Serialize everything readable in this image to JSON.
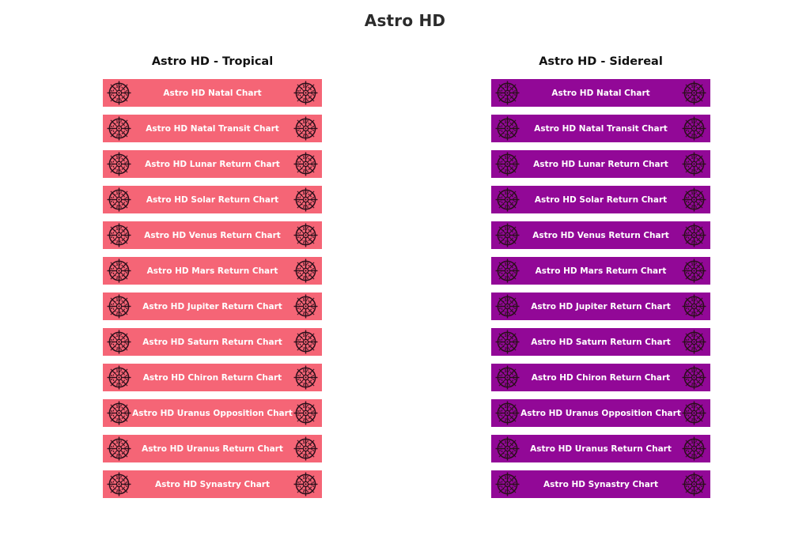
{
  "page": {
    "title": "Astro HD"
  },
  "colors": {
    "tropical": "#f56576",
    "sidereal": "#920897",
    "icon_stroke": "#2a0f1a"
  },
  "icons": {
    "left": "zodiac-wheel-icon",
    "right": "zodiac-wheel-icon"
  },
  "tropical": {
    "title": "Astro HD - Tropical",
    "buttons": [
      "Astro HD Natal Chart",
      "Astro HD Natal Transit Chart",
      "Astro HD Lunar Return Chart",
      "Astro HD Solar Return Chart",
      "Astro HD Venus Return Chart",
      "Astro HD Mars Return Chart",
      "Astro HD Jupiter Return Chart",
      "Astro HD Saturn Return Chart",
      "Astro HD Chiron Return Chart",
      "Astro HD Uranus Opposition Chart",
      "Astro HD Uranus Return Chart",
      "Astro HD Synastry Chart"
    ]
  },
  "sidereal": {
    "title": "Astro HD - Sidereal",
    "buttons": [
      "Astro HD Natal Chart",
      "Astro HD Natal Transit Chart",
      "Astro HD Lunar Return Chart",
      "Astro HD Solar Return Chart",
      "Astro HD Venus Return Chart",
      "Astro HD Mars Return Chart",
      "Astro HD Jupiter Return Chart",
      "Astro HD Saturn Return Chart",
      "Astro HD Chiron Return Chart",
      "Astro HD Uranus Opposition Chart",
      "Astro HD Uranus Return Chart",
      "Astro HD Synastry Chart"
    ]
  }
}
